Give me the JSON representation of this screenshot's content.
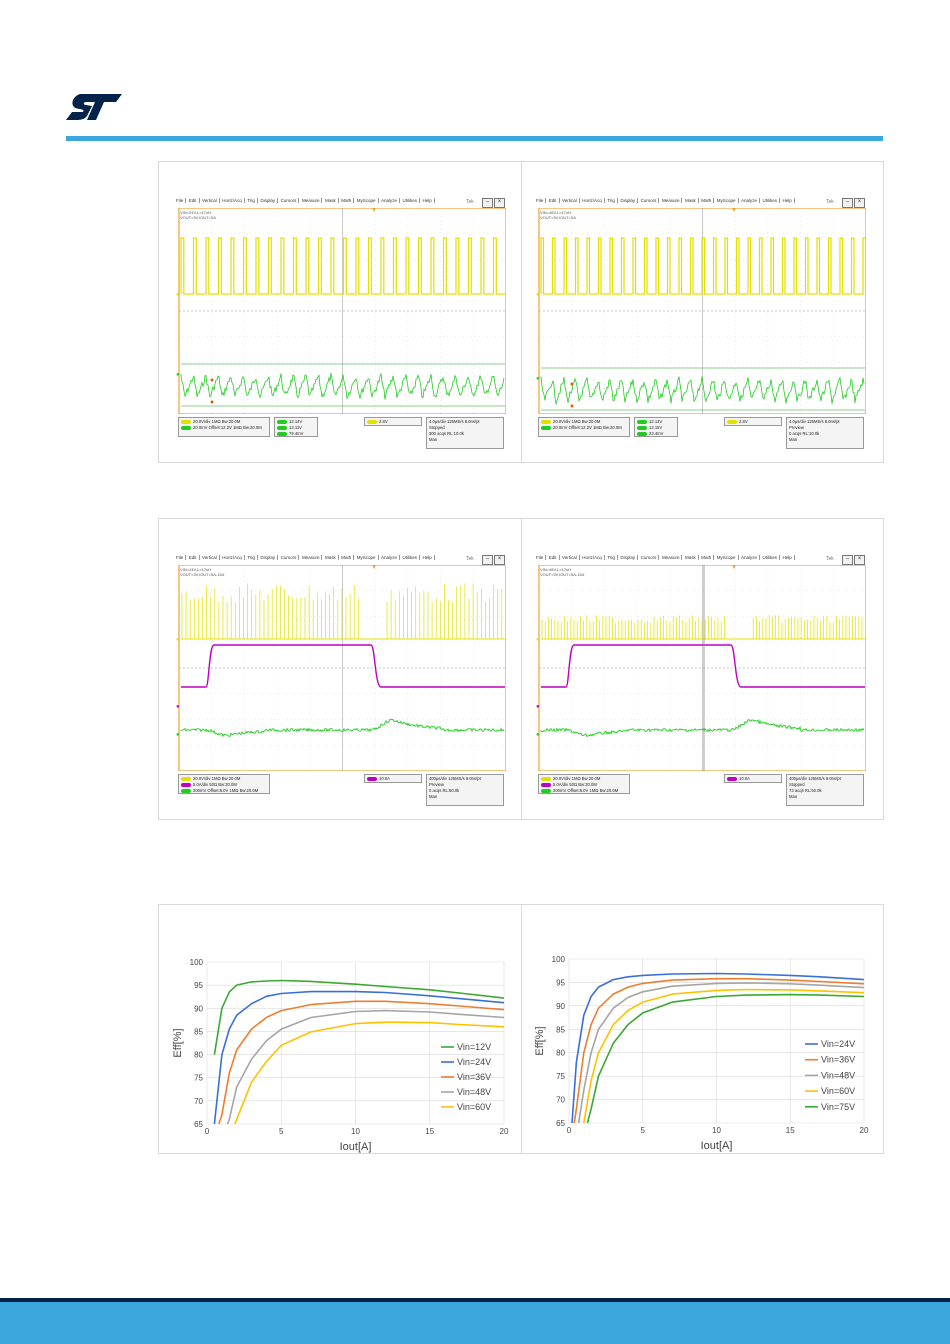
{
  "colors": {
    "accent": "#3ca7dc",
    "footer_dark": "#03234b",
    "logo": "#03234b",
    "ch1": "#e3e000",
    "ch2": "#c000c0",
    "ch3": "#22cc22"
  },
  "menu": [
    "File",
    "Edit",
    "Vertical",
    "Horiz/Acq",
    "Trig",
    "Display",
    "Cursors",
    "Measure",
    "Mask",
    "Math",
    "MyScope",
    "Analyze",
    "Utilities",
    "Help"
  ],
  "tek_label": "Tek",
  "scopes": [
    {
      "labels": [
        "VIN=24V,L=47uH",
        "VOUT=5V,IOUT=0A"
      ],
      "ch_boxes": [
        "20.0V/div   1MΩ  Bw:20.0M",
        "20.0mV  Offset:12.2V  1MΩ  Bw:20.0M"
      ],
      "meas": [
        "12.14V",
        "12.11V",
        "79.4mV"
      ],
      "trig": "2.8V",
      "acq": [
        "4.0µs/div  125MS/s  8.0ns/pt",
        "Stopped",
        "300 acqs   RL:10.0k",
        "Man"
      ]
    },
    {
      "labels": [
        "VIN=48V,L=47uH",
        "VOUT=5V,IOUT=0A"
      ],
      "ch_boxes": [
        "20.0V/div   1MΩ  Bw:20.0M",
        "20.0mV  Offset:12.2V  1MΩ  Bw:20.0M"
      ],
      "meas": [
        "12.13V",
        "12.15V",
        "23.4mV"
      ],
      "trig": "2.8V",
      "acq": [
        "4.0µs/div  125MS/s  8.0ns/pt",
        "Preview",
        "0 acqs   RL:10.0k",
        "Man"
      ]
    },
    {
      "labels": [
        "VIN=24V,L=47uH",
        "VOUT=5V,IOUT=5A-15A"
      ],
      "ch_boxes": [
        "20.0V/div   1MΩ  Bw:20.0M",
        "5.0A/div   50Ω  Bw:20.0M",
        "200mV  Offset:5.0V  1MΩ  Bw:20.0M"
      ],
      "meas": [],
      "trig": "10.0A",
      "acq": [
        "400µs/div  125MS/s  8.0ns/pt",
        "Preview",
        "0 acqs   RL:50.0k",
        "Man"
      ]
    },
    {
      "labels": [
        "VIN=48V,L=47uH",
        "VOUT=5V,IOUT=5A-15A"
      ],
      "ch_boxes": [
        "20.0V/div   1MΩ  Bw:20.0M",
        "5.0A/div   50Ω  Bw:20.0M",
        "200mV  Offset:5.0V  1MΩ  Bw:20.0M"
      ],
      "meas": [],
      "trig": "10.0A",
      "acq": [
        "400µs/div  125MS/s  8.0ns/pt",
        "Stopped",
        "73 acqs   RL:50.0k",
        "Man"
      ]
    }
  ],
  "chart_data": [
    {
      "type": "line",
      "xlabel": "Iout[A]",
      "ylabel": "Eff[%]",
      "xlim": [
        0,
        20
      ],
      "ylim": [
        65,
        100
      ],
      "xticks": [
        "0",
        "5",
        "10",
        "15",
        "20"
      ],
      "yticks": [
        "65",
        "70",
        "75",
        "80",
        "85",
        "90",
        "95",
        "100"
      ],
      "legend": "bottom-right",
      "x": [
        0.5,
        1,
        1.5,
        2,
        3,
        4,
        5,
        7,
        10,
        12,
        15,
        17,
        20
      ],
      "series": [
        {
          "name": "Vin=12V",
          "color": "#3aa832",
          "values": [
            80,
            90,
            93.5,
            95,
            95.7,
            95.9,
            96,
            95.8,
            95.2,
            94.7,
            94,
            93.3,
            92.2
          ]
        },
        {
          "name": "Vin=24V",
          "color": "#3a6fd8",
          "values": [
            65,
            80,
            85.5,
            88.5,
            91,
            92.6,
            93.2,
            93.6,
            93.6,
            93.4,
            92.7,
            92.1,
            91.2
          ]
        },
        {
          "name": "Vin=36V",
          "color": "#ed7d31",
          "values": [
            null,
            67,
            76,
            81,
            85.5,
            88,
            89.5,
            90.8,
            91.5,
            91.5,
            91,
            90.5,
            89.7
          ]
        },
        {
          "name": "Vin=48V",
          "color": "#a5a5a5",
          "values": [
            null,
            null,
            66,
            73,
            79,
            83,
            85.5,
            88,
            89.3,
            89.5,
            89.2,
            88.7,
            88
          ]
        },
        {
          "name": "Vin=60V",
          "color": "#ffc000",
          "values": [
            null,
            null,
            null,
            66,
            74,
            78.5,
            82,
            84.9,
            86.7,
            87,
            86.9,
            86.5,
            86
          ]
        }
      ]
    },
    {
      "type": "line",
      "xlabel": "Iout[A]",
      "ylabel": "Eff[%]",
      "xlim": [
        0,
        20
      ],
      "ylim": [
        65,
        100
      ],
      "xticks": [
        "0",
        "5",
        "10",
        "15",
        "20"
      ],
      "yticks": [
        "65",
        "70",
        "75",
        "80",
        "85",
        "90",
        "95",
        "100"
      ],
      "legend": "right",
      "x": [
        0.2,
        0.5,
        1,
        1.5,
        2,
        3,
        4,
        5,
        7,
        10,
        12,
        15,
        17,
        20
      ],
      "series": [
        {
          "name": "Vin=24V",
          "color": "#3a6fd8",
          "values": [
            65,
            78,
            88,
            92,
            94,
            95.6,
            96.2,
            96.5,
            96.8,
            96.9,
            96.8,
            96.5,
            96.2,
            95.6
          ]
        },
        {
          "name": "Vin=36V",
          "color": "#ed7d31",
          "values": [
            null,
            68,
            80,
            86,
            89.5,
            92.5,
            94,
            94.8,
            95.5,
            95.8,
            95.8,
            95.5,
            95.2,
            94.7
          ]
        },
        {
          "name": "Vin=48V",
          "color": "#a5a5a5",
          "values": [
            null,
            null,
            72,
            80,
            85,
            89.5,
            91.8,
            93,
            94.2,
            94.8,
            94.9,
            94.7,
            94.4,
            93.9
          ]
        },
        {
          "name": "Vin=60V",
          "color": "#ffc000",
          "values": [
            null,
            null,
            65,
            74,
            80,
            86,
            89,
            90.8,
            92.5,
            93.3,
            93.5,
            93.4,
            93.2,
            92.8
          ]
        },
        {
          "name": "Vin=75V",
          "color": "#3aa832",
          "values": [
            null,
            null,
            null,
            68,
            75,
            82,
            86,
            88.5,
            90.8,
            92,
            92.3,
            92.4,
            92.3,
            92
          ]
        }
      ]
    }
  ]
}
